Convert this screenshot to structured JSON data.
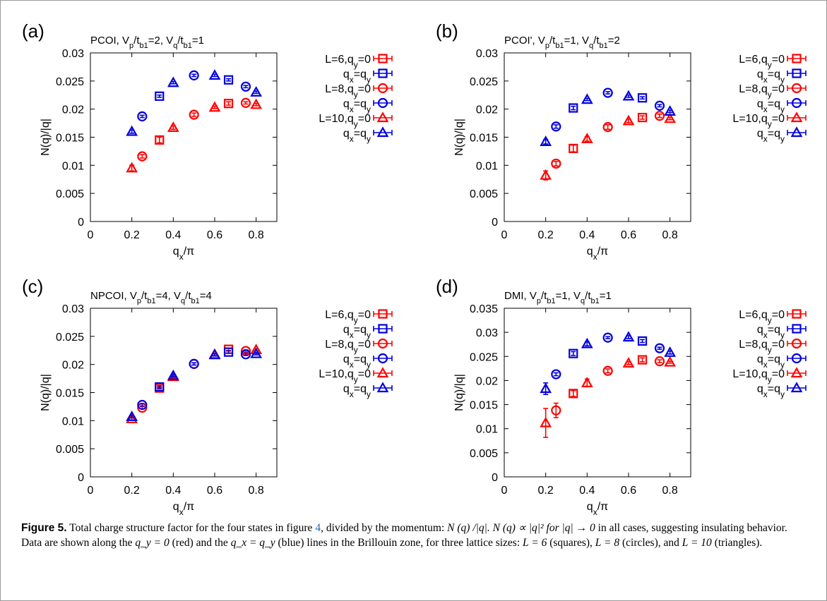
{
  "colors": {
    "red": "#ff0000",
    "blue": "#0000dd",
    "axis": "#000000"
  },
  "chart_data": [
    {
      "type": "scatter",
      "panel_label": "(a)",
      "title": "PCOI, V_p/t_b1=2, V_q/t_b1=1",
      "title_parts": {
        "name": "PCOI,",
        "v1": "V",
        "s1": "p",
        "m1": "/t",
        "s2": "b1",
        "e1": "=2, ",
        "v2": "V",
        "s3": "q",
        "m2": "/t",
        "s4": "b1",
        "e2": "=1"
      },
      "xlabel": "q_x/π",
      "ylabel": "N(q)/|q|",
      "xlim": [
        0,
        0.9
      ],
      "ylim": [
        0,
        0.03
      ],
      "xticks": [
        "0",
        "0.2",
        "0.4",
        "0.6",
        "0.8"
      ],
      "yticks": [
        "0",
        "0.005",
        "0.01",
        "0.015",
        "0.02",
        "0.025",
        "0.03"
      ],
      "legend_position": "right",
      "series": [
        {
          "name": "L=6,q_y=0",
          "marker": "square",
          "color": "red",
          "x": [
            0.3333,
            0.6667
          ],
          "y": [
            0.0145,
            0.021
          ],
          "err": [
            0.0005,
            0.0003
          ]
        },
        {
          "name": "q_x=q_y",
          "marker": "square",
          "color": "blue",
          "x": [
            0.3333,
            0.6667
          ],
          "y": [
            0.0223,
            0.0252
          ],
          "err": [
            0.0002,
            0.0002
          ]
        },
        {
          "name": "L=8,q_y=0",
          "marker": "circle",
          "color": "red",
          "x": [
            0.25,
            0.5,
            0.75
          ],
          "y": [
            0.0116,
            0.019,
            0.0211
          ],
          "err": [
            0.0003,
            0.0003,
            0.0002
          ]
        },
        {
          "name": "q_x=q_y",
          "marker": "circle",
          "color": "blue",
          "x": [
            0.25,
            0.5,
            0.75
          ],
          "y": [
            0.0187,
            0.026,
            0.024
          ],
          "err": [
            0.0002,
            0.0002,
            0.0002
          ]
        },
        {
          "name": "L=10,q_y=0",
          "marker": "triangle",
          "color": "red",
          "x": [
            0.2,
            0.4,
            0.6,
            0.8
          ],
          "y": [
            0.0095,
            0.0167,
            0.0203,
            0.0208
          ],
          "err": [
            0.0005,
            0.0003,
            0.0002,
            0.0002
          ]
        },
        {
          "name": "q_x=q_y",
          "marker": "triangle",
          "color": "blue",
          "x": [
            0.2,
            0.4,
            0.6,
            0.8
          ],
          "y": [
            0.016,
            0.0247,
            0.026,
            0.023
          ],
          "err": [
            0.0003,
            0.0002,
            0.0002,
            0.0002
          ]
        }
      ]
    },
    {
      "type": "scatter",
      "panel_label": "(b)",
      "title": "PCOI', V_p/t_b1=1, V_q/t_b1=2",
      "title_parts": {
        "name": "PCOI',",
        "v1": "V",
        "s1": "p",
        "m1": "/t",
        "s2": "b1",
        "e1": "=1, ",
        "v2": "V",
        "s3": "q",
        "m2": "/t",
        "s4": "b1",
        "e2": "=2"
      },
      "xlabel": "q_x/π",
      "ylabel": "N(q)/|q|",
      "xlim": [
        0,
        0.9
      ],
      "ylim": [
        0,
        0.03
      ],
      "xticks": [
        "0",
        "0.2",
        "0.4",
        "0.6",
        "0.8"
      ],
      "yticks": [
        "0",
        "0.005",
        "0.01",
        "0.015",
        "0.02",
        "0.025",
        "0.03"
      ],
      "legend_position": "right",
      "series": [
        {
          "name": "L=6,q_y=0",
          "marker": "square",
          "color": "red",
          "x": [
            0.3333,
            0.6667
          ],
          "y": [
            0.013,
            0.0185
          ],
          "err": [
            0.0006,
            0.0003
          ]
        },
        {
          "name": "q_x=q_y",
          "marker": "square",
          "color": "blue",
          "x": [
            0.3333,
            0.6667
          ],
          "y": [
            0.0202,
            0.022
          ],
          "err": [
            0.0003,
            0.0002
          ]
        },
        {
          "name": "L=8,q_y=0",
          "marker": "circle",
          "color": "red",
          "x": [
            0.25,
            0.5,
            0.75
          ],
          "y": [
            0.0103,
            0.0168,
            0.0188
          ],
          "err": [
            0.0004,
            0.0004,
            0.0003
          ]
        },
        {
          "name": "q_x=q_y",
          "marker": "circle",
          "color": "blue",
          "x": [
            0.25,
            0.5,
            0.75
          ],
          "y": [
            0.0169,
            0.0229,
            0.0206
          ],
          "err": [
            0.0003,
            0.0002,
            0.0002
          ]
        },
        {
          "name": "L=10,q_y=0",
          "marker": "triangle",
          "color": "red",
          "x": [
            0.2,
            0.4,
            0.6,
            0.8
          ],
          "y": [
            0.0082,
            0.0147,
            0.0179,
            0.0183
          ],
          "err": [
            0.0008,
            0.0004,
            0.0003,
            0.0002
          ]
        },
        {
          "name": "q_x=q_y",
          "marker": "triangle",
          "color": "blue",
          "x": [
            0.2,
            0.4,
            0.6,
            0.8
          ],
          "y": [
            0.0142,
            0.0217,
            0.0223,
            0.0196
          ],
          "err": [
            0.0004,
            0.0002,
            0.0002,
            0.0002
          ]
        }
      ]
    },
    {
      "type": "scatter",
      "panel_label": "(c)",
      "title": "NPCOI, V_p/t_b1=4, V_q/t_b1=4",
      "title_parts": {
        "name": "NPCOI,",
        "v1": "V",
        "s1": "p",
        "m1": "/t",
        "s2": "b1",
        "e1": "=4, ",
        "v2": "V",
        "s3": "q",
        "m2": "/t",
        "s4": "b1",
        "e2": "=4"
      },
      "xlabel": "q_x/π",
      "ylabel": "N(q)/|q|",
      "xlim": [
        0,
        0.9
      ],
      "ylim": [
        0,
        0.03
      ],
      "xticks": [
        "0",
        "0.2",
        "0.4",
        "0.6",
        "0.8"
      ],
      "yticks": [
        "0",
        "0.005",
        "0.01",
        "0.015",
        "0.02",
        "0.025",
        "0.03"
      ],
      "legend_position": "right",
      "series": [
        {
          "name": "L=6,q_y=0",
          "marker": "square",
          "color": "red",
          "x": [
            0.3333,
            0.6667
          ],
          "y": [
            0.0158,
            0.0227
          ],
          "err": [
            0.0002,
            0.0002
          ]
        },
        {
          "name": "q_x=q_y",
          "marker": "square",
          "color": "blue",
          "x": [
            0.3333,
            0.6667
          ],
          "y": [
            0.016,
            0.0222
          ],
          "err": [
            0.0002,
            0.0002
          ]
        },
        {
          "name": "L=8,q_y=0",
          "marker": "circle",
          "color": "red",
          "x": [
            0.25,
            0.5,
            0.75
          ],
          "y": [
            0.0123,
            0.0201,
            0.0224
          ],
          "err": [
            0.0002,
            0.0002,
            0.0002
          ]
        },
        {
          "name": "q_x=q_y",
          "marker": "circle",
          "color": "blue",
          "x": [
            0.25,
            0.5,
            0.75
          ],
          "y": [
            0.0128,
            0.0201,
            0.0218
          ],
          "err": [
            0.0002,
            0.0002,
            0.0002
          ]
        },
        {
          "name": "L=10,q_y=0",
          "marker": "triangle",
          "color": "red",
          "x": [
            0.2,
            0.4,
            0.6,
            0.8
          ],
          "y": [
            0.0103,
            0.0178,
            0.0218,
            0.0226
          ],
          "err": [
            0.0002,
            0.0002,
            0.0002,
            0.0002
          ]
        },
        {
          "name": "q_x=q_y",
          "marker": "triangle",
          "color": "blue",
          "x": [
            0.2,
            0.4,
            0.6,
            0.8
          ],
          "y": [
            0.0107,
            0.018,
            0.0217,
            0.0219
          ],
          "err": [
            0.0002,
            0.0002,
            0.0002,
            0.0002
          ]
        }
      ]
    },
    {
      "type": "scatter",
      "panel_label": "(d)",
      "title": "DMI, V_p/t_b1=1, V_q/t_b1=1",
      "title_parts": {
        "name": "DMI,",
        "v1": "V",
        "s1": "p",
        "m1": "/t",
        "s2": "b1",
        "e1": "=1, ",
        "v2": "V",
        "s3": "q",
        "m2": "/t",
        "s4": "b1",
        "e2": "=1"
      },
      "xlabel": "q_x/π",
      "ylabel": "N(q)/|q|",
      "xlim": [
        0,
        0.9
      ],
      "ylim": [
        0,
        0.035
      ],
      "xticks": [
        "0",
        "0.2",
        "0.4",
        "0.6",
        "0.8"
      ],
      "yticks": [
        "0",
        "0.005",
        "0.01",
        "0.015",
        "0.02",
        "0.025",
        "0.03",
        "0.035"
      ],
      "legend_position": "right",
      "series": [
        {
          "name": "L=6,q_y=0",
          "marker": "square",
          "color": "red",
          "x": [
            0.3333,
            0.6667
          ],
          "y": [
            0.0173,
            0.0243
          ],
          "err": [
            0.0006,
            0.0004
          ]
        },
        {
          "name": "q_x=q_y",
          "marker": "square",
          "color": "blue",
          "x": [
            0.3333,
            0.6667
          ],
          "y": [
            0.0256,
            0.0282
          ],
          "err": [
            0.0004,
            0.0003
          ]
        },
        {
          "name": "L=8,q_y=0",
          "marker": "circle",
          "color": "red",
          "x": [
            0.25,
            0.5,
            0.75
          ],
          "y": [
            0.0138,
            0.022,
            0.024
          ],
          "err": [
            0.0015,
            0.0004,
            0.0003
          ]
        },
        {
          "name": "q_x=q_y",
          "marker": "circle",
          "color": "blue",
          "x": [
            0.25,
            0.5,
            0.75
          ],
          "y": [
            0.0213,
            0.0289,
            0.0267
          ],
          "err": [
            0.0003,
            0.0002,
            0.0002
          ]
        },
        {
          "name": "L=10,q_y=0",
          "marker": "triangle",
          "color": "red",
          "x": [
            0.2,
            0.4,
            0.6,
            0.8
          ],
          "y": [
            0.0112,
            0.0195,
            0.0236,
            0.0238
          ],
          "err": [
            0.003,
            0.0008,
            0.0003,
            0.0002
          ]
        },
        {
          "name": "q_x=q_y",
          "marker": "triangle",
          "color": "blue",
          "x": [
            0.2,
            0.4,
            0.6,
            0.8
          ],
          "y": [
            0.0183,
            0.0276,
            0.029,
            0.0258
          ],
          "err": [
            0.0012,
            0.0004,
            0.0003,
            0.0003
          ]
        }
      ]
    }
  ],
  "caption": {
    "label": "Figure 5.",
    "t1": " Total charge structure factor for the four states in figure ",
    "ref": "4",
    "t2": ", divided by the momentum: ",
    "m1": "N (q) /|q|. N (q) ∝ |q|² for |q| → 0",
    "t3": " in all cases, suggesting insulating behavior. Data are shown along the ",
    "m2": "q_y = 0",
    "t4": " (red) and the ",
    "m3": "q_x = q_y",
    "t5": " (blue) lines in the Brillouin zone, for three lattice sizes: ",
    "m4": "L = 6",
    "t6": " (squares), ",
    "m5": "L = 8",
    "t7": " (circles), and ",
    "m6": "L = 10",
    "t8": " (triangles)."
  }
}
